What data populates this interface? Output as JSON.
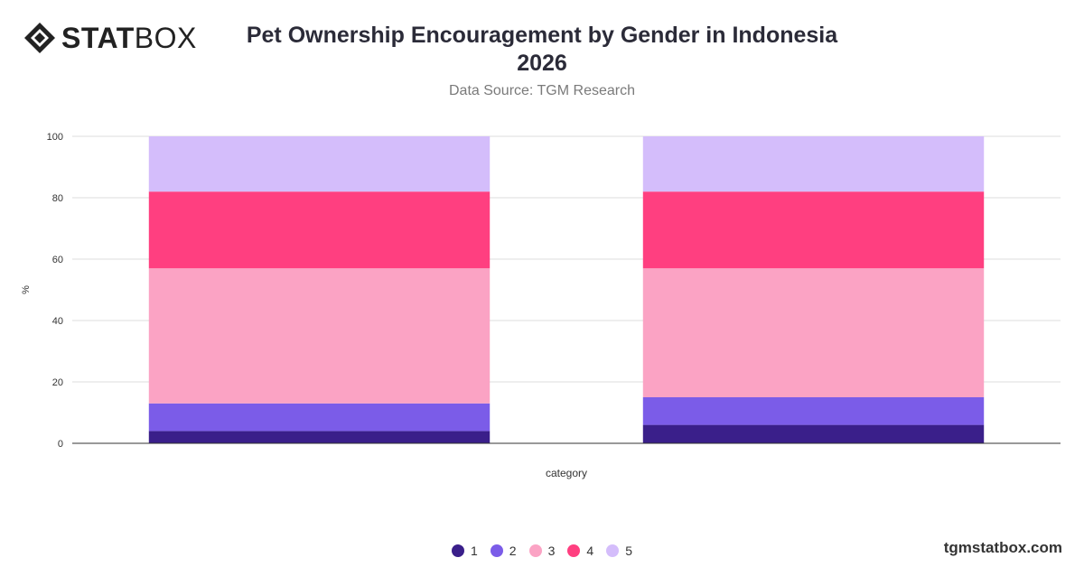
{
  "brand": {
    "logo_bold": "STAT",
    "logo_light": "BOX",
    "logo_icon": "diamond-logo-icon"
  },
  "header": {
    "title_line1": "Pet Ownership Encouragement by Gender in Indonesia",
    "title_line2": "2026",
    "subtitle": "Data Source: TGM Research"
  },
  "footer": {
    "watermark": "tgmstatbox.com"
  },
  "chart_data": {
    "type": "bar",
    "stacked": true,
    "categories": [
      "",
      ""
    ],
    "series": [
      {
        "name": "1",
        "color": "#3a1f8a",
        "values": [
          4,
          6
        ]
      },
      {
        "name": "2",
        "color": "#7b5ce8",
        "values": [
          9,
          9
        ]
      },
      {
        "name": "3",
        "color": "#fba3c4",
        "values": [
          44,
          42
        ]
      },
      {
        "name": "4",
        "color": "#ff3f80",
        "values": [
          25,
          25
        ]
      },
      {
        "name": "5",
        "color": "#d4bdfb",
        "values": [
          18,
          18
        ]
      }
    ],
    "xlabel": "category",
    "ylabel": "%",
    "ylim": [
      0,
      100
    ],
    "yticks": [
      0,
      20,
      40,
      60,
      80,
      100
    ],
    "grid": true,
    "legend_position": "bottom-center"
  }
}
